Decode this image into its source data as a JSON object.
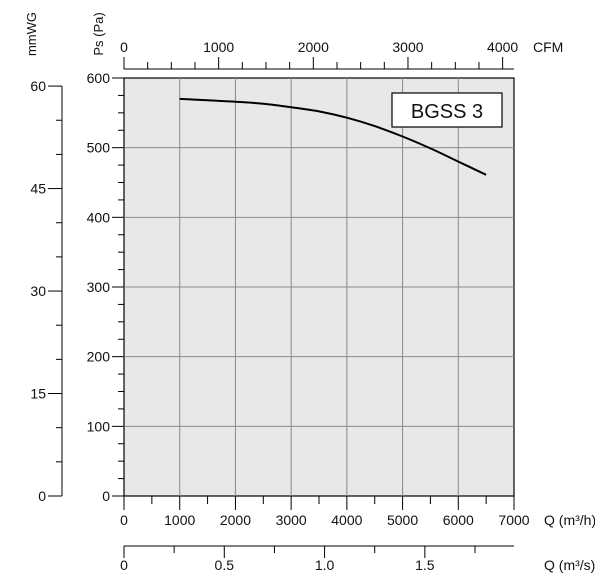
{
  "chart_data": {
    "type": "line",
    "title": "",
    "legend_label": "BGSS 3",
    "legend_position": "top-right",
    "grid": true,
    "plot_background": "#e8e8e8",
    "curve_color": "#000000",
    "x_primary": {
      "label": "Q (m³/h)",
      "range": [
        0,
        7000
      ],
      "ticks": [
        "0",
        "1000",
        "2000",
        "3000",
        "4000",
        "5000",
        "6000",
        "7000"
      ],
      "tick_values": [
        0,
        1000,
        2000,
        3000,
        4000,
        5000,
        6000,
        7000
      ]
    },
    "x_cfm": {
      "label": "CFM",
      "ticks": [
        "0",
        "1000",
        "2000",
        "3000",
        "4000"
      ],
      "tick_values": [
        0,
        1000,
        2000,
        3000,
        4000
      ]
    },
    "x_m3s": {
      "label": "Q (m³/s)",
      "ticks": [
        "0",
        "0.5",
        "1.0",
        "1.5"
      ],
      "tick_values": [
        0,
        0.5,
        1.0,
        1.5
      ]
    },
    "y_primary": {
      "label": "Ps (Pa)",
      "range": [
        0,
        600
      ],
      "ticks": [
        "0",
        "100",
        "200",
        "300",
        "400",
        "500",
        "600"
      ],
      "tick_values": [
        0,
        100,
        200,
        300,
        400,
        500,
        600
      ]
    },
    "y_mmwg": {
      "label": "mmWG",
      "ticks": [
        "0",
        "15",
        "30",
        "45",
        "60"
      ],
      "tick_values": [
        0,
        15,
        30,
        45,
        60
      ]
    },
    "series": [
      {
        "name": "BGSS 3",
        "x": [
          1000,
          1500,
          2000,
          2500,
          3000,
          3500,
          4000,
          4500,
          5000,
          5500,
          6000,
          6500
        ],
        "y": [
          570,
          568,
          566,
          563,
          558,
          552,
          543,
          531,
          516,
          499,
          480,
          461
        ]
      }
    ]
  }
}
